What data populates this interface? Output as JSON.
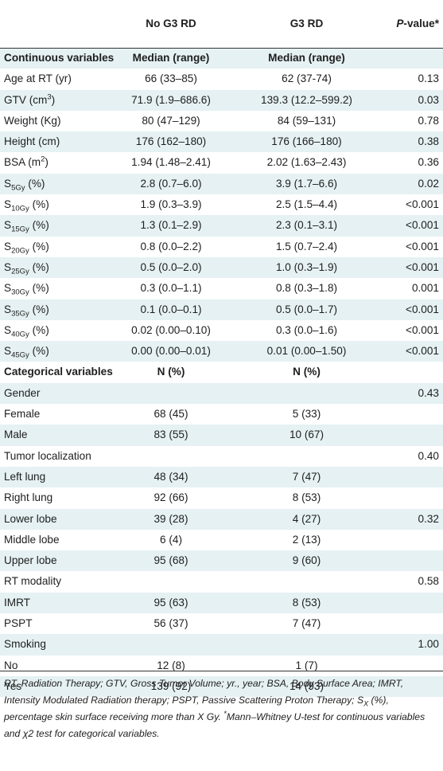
{
  "header": {
    "col1": "No G3 RD",
    "col2": "G3 RD",
    "col3_p": "P",
    "col3_rest": "-value*"
  },
  "rows": [
    {
      "type": "section",
      "c0": "Continuous variables",
      "c1": "Median (range)",
      "c2": "Median (range)",
      "c3": ""
    },
    {
      "type": "data",
      "c0": "Age at RT (yr)",
      "c1": "66 (33–85)",
      "c2": "62 (37-74)",
      "c3": "0.13"
    },
    {
      "type": "data",
      "c0": "GTV (cm",
      "sup": "3",
      "c0b": ")",
      "c1": "71.9 (1.9–686.6)",
      "c2": "139.3 (12.2–599.2)",
      "c3": "0.03"
    },
    {
      "type": "data",
      "c0": "Weight (Kg)",
      "c1": "80 (47–129)",
      "c2": "84 (59–131)",
      "c3": "0.78"
    },
    {
      "type": "data",
      "c0": "Height (cm)",
      "c1": "176 (162–180)",
      "c2": "176 (166–180)",
      "c3": "0.38"
    },
    {
      "type": "data",
      "c0": "BSA (m",
      "sup": "2",
      "c0b": ")",
      "c1": "1.94 (1.48–2.41)",
      "c2": "2.02 (1.63–2.43)",
      "c3": "0.36"
    },
    {
      "type": "data",
      "c0": "S",
      "sub": "5Gy",
      "c0b": " (%)",
      "c1": "2.8 (0.7–6.0)",
      "c2": "3.9 (1.7–6.6)",
      "c3": "0.02"
    },
    {
      "type": "data",
      "c0": "S",
      "sub": "10Gy",
      "c0b": " (%)",
      "c1": "1.9 (0.3–3.9)",
      "c2": "2.5 (1.5–4.4)",
      "c3": "<0.001"
    },
    {
      "type": "data",
      "c0": "S",
      "sub": "15Gy",
      "c0b": " (%)",
      "c1": "1.3 (0.1–2.9)",
      "c2": "2.3 (0.1–3.1)",
      "c3": "<0.001"
    },
    {
      "type": "data",
      "c0": "S",
      "sub": "20Gy",
      "c0b": " (%)",
      "c1": "0.8 (0.0–2.2)",
      "c2": "1.5 (0.7–2.4)",
      "c3": "<0.001"
    },
    {
      "type": "data",
      "c0": "S",
      "sub": "25Gy",
      "c0b": " (%)",
      "c1": "0.5 (0.0–2.0)",
      "c2": "1.0 (0.3–1.9)",
      "c3": "<0.001"
    },
    {
      "type": "data",
      "c0": "S",
      "sub": "30Gy",
      "c0b": " (%)",
      "c1": "0.3 (0.0–1.1)",
      "c2": "0.8 (0.3–1.8)",
      "c3": "0.001"
    },
    {
      "type": "data",
      "c0": "S",
      "sub": "35Gy",
      "c0b": " (%)",
      "c1": "0.1 (0.0–0.1)",
      "c2": "0.5 (0.0–1.7)",
      "c3": "<0.001"
    },
    {
      "type": "data",
      "c0": "S",
      "sub": "40Gy",
      "c0b": " (%)",
      "c1": "0.02 (0.00–0.10)",
      "c2": "0.3 (0.0–1.6)",
      "c3": "<0.001"
    },
    {
      "type": "data",
      "c0": "S",
      "sub": "45Gy",
      "c0b": " (%)",
      "c1": "0.00 (0.00–0.01)",
      "c2": "0.01 (0.00–1.50)",
      "c3": "<0.001"
    },
    {
      "type": "section",
      "c0": "Categorical variables",
      "c1": "N (%)",
      "c2": "N (%)",
      "c3": ""
    },
    {
      "type": "data",
      "c0": "Gender",
      "c1": "",
      "c2": "",
      "c3": "0.43"
    },
    {
      "type": "data",
      "c0": "Female",
      "c1": "68 (45)",
      "c2": "5 (33)",
      "c3": ""
    },
    {
      "type": "data",
      "c0": "Male",
      "c1": "83 (55)",
      "c2": "10 (67)",
      "c3": ""
    },
    {
      "type": "data",
      "c0": "Tumor localization",
      "c1": "",
      "c2": "",
      "c3": "0.40"
    },
    {
      "type": "data",
      "c0": "Left lung",
      "c1": "48 (34)",
      "c2": "7 (47)",
      "c3": ""
    },
    {
      "type": "data",
      "c0": "Right lung",
      "c1": "92 (66)",
      "c2": "8 (53)",
      "c3": ""
    },
    {
      "type": "data",
      "c0": "Lower lobe",
      "c1": "39 (28)",
      "c2": "4 (27)",
      "c3": "0.32"
    },
    {
      "type": "data",
      "c0": "Middle lobe",
      "c1": "6 (4)",
      "c2": "2 (13)",
      "c3": ""
    },
    {
      "type": "data",
      "c0": "Upper lobe",
      "c1": "95 (68)",
      "c2": "9 (60)",
      "c3": ""
    },
    {
      "type": "data",
      "c0": "RT modality",
      "c1": "",
      "c2": "",
      "c3": "0.58"
    },
    {
      "type": "data",
      "c0": "IMRT",
      "c1": "95 (63)",
      "c2": "8 (53)",
      "c3": ""
    },
    {
      "type": "data",
      "c0": "PSPT",
      "c1": "56 (37)",
      "c2": "7 (47)",
      "c3": ""
    },
    {
      "type": "data",
      "c0": "Smoking",
      "c1": "",
      "c2": "",
      "c3": "1.00"
    },
    {
      "type": "data",
      "c0": "No",
      "c1": "12 (8)",
      "c2": "1 (7)",
      "c3": ""
    },
    {
      "type": "data",
      "c0": "Yes",
      "c1": "139 (92)",
      "c2": "14 (93)",
      "c3": ""
    }
  ],
  "footnote": {
    "part1": "RT, Radiation Therapy; GTV, Gross Tumor Volume; yr., year; BSA, Body Surface Area; IMRT, Intensity Modulated Radiation therapy; PSPT, Passive Scattering Proton Therapy; S",
    "sub": "X",
    "part2": " (%), percentage skin surface receiving more than X Gy. ",
    "star": "*",
    "part3": "Mann–Whitney U-test for continuous variables and χ2 test for categorical variables."
  },
  "colors": {
    "stripe": "#e5f1f3",
    "rule": "#333333",
    "text": "#1e1e1e"
  }
}
